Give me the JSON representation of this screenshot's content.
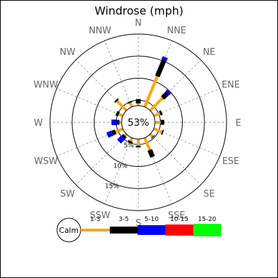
{
  "chart_data": {
    "type": "windrose",
    "title": "Windrose (mph)",
    "calm_label": "53%",
    "directions": [
      "N",
      "NNE",
      "NE",
      "ENE",
      "E",
      "ESE",
      "SE",
      "SSE",
      "S",
      "SSW",
      "SW",
      "WSW",
      "W",
      "WNW",
      "NW",
      "NNW"
    ],
    "ring_labels": [
      "5%",
      "10%",
      "15%"
    ],
    "ring_values": [
      5,
      10,
      15
    ],
    "max_percent": 20,
    "bins": [
      {
        "label": "1-3",
        "color": "#FFA500"
      },
      {
        "label": "3-5",
        "color": "#000000"
      },
      {
        "label": "5-10",
        "color": "#0000FF"
      },
      {
        "label": "10-15",
        "color": "#FF0000"
      },
      {
        "label": "15-20",
        "color": "#00FF00"
      }
    ],
    "calm_legend_label": "Calm",
    "segments": [
      {
        "dir": "N",
        "v": [
          0.5,
          1.0,
          0,
          0,
          0
        ]
      },
      {
        "dir": "NNE",
        "v": [
          7.5,
          4.0,
          0.7,
          0,
          0
        ]
      },
      {
        "dir": "NE",
        "v": [
          4.0,
          1.5,
          0.6,
          0,
          0
        ]
      },
      {
        "dir": "ENE",
        "v": [
          1.5,
          0.5,
          0,
          0,
          0
        ]
      },
      {
        "dir": "E",
        "v": [
          1.3,
          0.8,
          0,
          0,
          0
        ]
      },
      {
        "dir": "ESE",
        "v": [
          2.0,
          0.3,
          0,
          0,
          0
        ]
      },
      {
        "dir": "SE",
        "v": [
          0.8,
          0.2,
          0,
          0,
          0
        ]
      },
      {
        "dir": "SSE",
        "v": [
          3.0,
          1.7,
          0,
          0,
          0
        ]
      },
      {
        "dir": "S",
        "v": [
          1.5,
          0.4,
          0,
          0,
          0
        ]
      },
      {
        "dir": "SSW",
        "v": [
          0.8,
          0.4,
          0,
          0,
          0
        ]
      },
      {
        "dir": "SW",
        "v": [
          0.5,
          0.5,
          1.4,
          0,
          0
        ]
      },
      {
        "dir": "WSW",
        "v": [
          1.8,
          0.8,
          1.2,
          0,
          0
        ]
      },
      {
        "dir": "W",
        "v": [
          0.5,
          0.6,
          1.2,
          0,
          0
        ]
      },
      {
        "dir": "WNW",
        "v": [
          1.0,
          0.6,
          0,
          0,
          0
        ]
      },
      {
        "dir": "NW",
        "v": [
          3.0,
          0.4,
          0,
          0,
          0
        ]
      },
      {
        "dir": "NNW",
        "v": [
          1.0,
          0.3,
          0,
          0,
          0
        ]
      }
    ]
  }
}
